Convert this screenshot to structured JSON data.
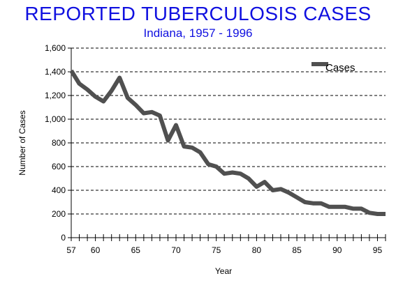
{
  "chart_data": {
    "type": "line",
    "title": "REPORTED TUBERCULOSIS CASES",
    "subtitle": "Indiana, 1957 - 1996",
    "xlabel": "Year",
    "ylabel": "Number of Cases",
    "xlim": [
      1957,
      1996
    ],
    "ylim": [
      0,
      1600
    ],
    "ytick_values": [
      0,
      200,
      400,
      600,
      800,
      1000,
      1200,
      1400,
      1600
    ],
    "ytick_labels": [
      "0",
      "200",
      "400",
      "600",
      "800",
      "1,000",
      "1,200",
      "1,400",
      "1,600"
    ],
    "xtick_values": [
      1957,
      1960,
      1965,
      1970,
      1975,
      1980,
      1985,
      1990,
      1995
    ],
    "xtick_labels": [
      "57",
      "60",
      "65",
      "70",
      "75",
      "80",
      "85",
      "90",
      "95"
    ],
    "grid": "horizontal dashed",
    "legend_position": "top-right",
    "line_color": "#505050",
    "series": [
      {
        "name": "Cases",
        "x": [
          1957,
          1958,
          1959,
          1960,
          1961,
          1962,
          1963,
          1964,
          1965,
          1966,
          1967,
          1968,
          1969,
          1970,
          1971,
          1972,
          1973,
          1974,
          1975,
          1976,
          1977,
          1978,
          1979,
          1980,
          1981,
          1982,
          1983,
          1984,
          1985,
          1986,
          1987,
          1988,
          1989,
          1990,
          1991,
          1992,
          1993,
          1994,
          1995,
          1996
        ],
        "values": [
          1410,
          1300,
          1250,
          1190,
          1150,
          1240,
          1350,
          1180,
          1120,
          1050,
          1060,
          1030,
          820,
          950,
          770,
          760,
          720,
          620,
          600,
          540,
          550,
          540,
          500,
          430,
          470,
          400,
          410,
          380,
          340,
          300,
          290,
          290,
          260,
          260,
          260,
          245,
          245,
          210,
          200,
          200
        ]
      }
    ]
  }
}
